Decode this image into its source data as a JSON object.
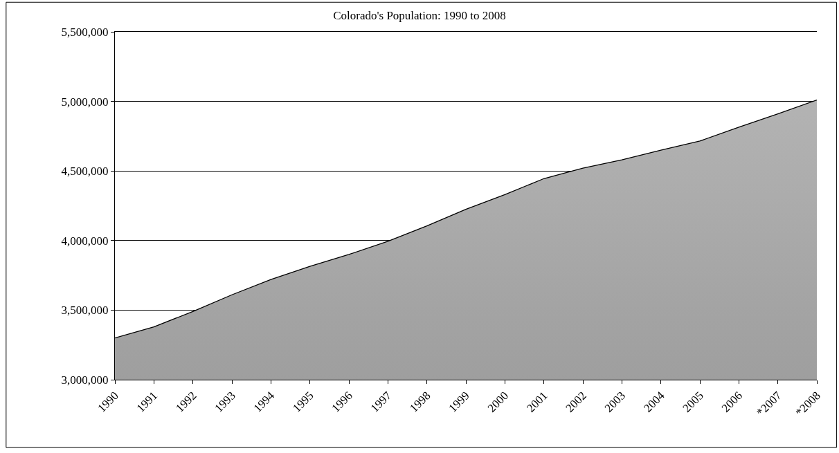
{
  "chart_data": {
    "type": "area",
    "title": "Colorado's Population: 1990 to 2008",
    "categories": [
      "1990",
      "1991",
      "1992",
      "1993",
      "1994",
      "1995",
      "1996",
      "1997",
      "1998",
      "1999",
      "2000",
      "2001",
      "2002",
      "2003",
      "2004",
      "2005",
      "2006",
      "*2007",
      "*2008"
    ],
    "series": [
      {
        "color": "#a0a0a0",
        "values": [
          3300000,
          3380000,
          3490000,
          3610000,
          3720000,
          3815000,
          3900000,
          3995000,
          4105000,
          4225000,
          4330000,
          4445000,
          4520000,
          4580000,
          4650000,
          4715000,
          4815000,
          4910000,
          5010000
        ]
      }
    ],
    "ylim": [
      3000000,
      5500000
    ],
    "yticks": [
      {
        "value": 3000000,
        "label": "3,000,000"
      },
      {
        "value": 3500000,
        "label": "3,500,000"
      },
      {
        "value": 4000000,
        "label": "4,000,000"
      },
      {
        "value": 4500000,
        "label": "4,500,000"
      },
      {
        "value": 5000000,
        "label": "5,000,000"
      },
      {
        "value": 5500000,
        "label": "5,500,000"
      }
    ],
    "grid": "y"
  }
}
